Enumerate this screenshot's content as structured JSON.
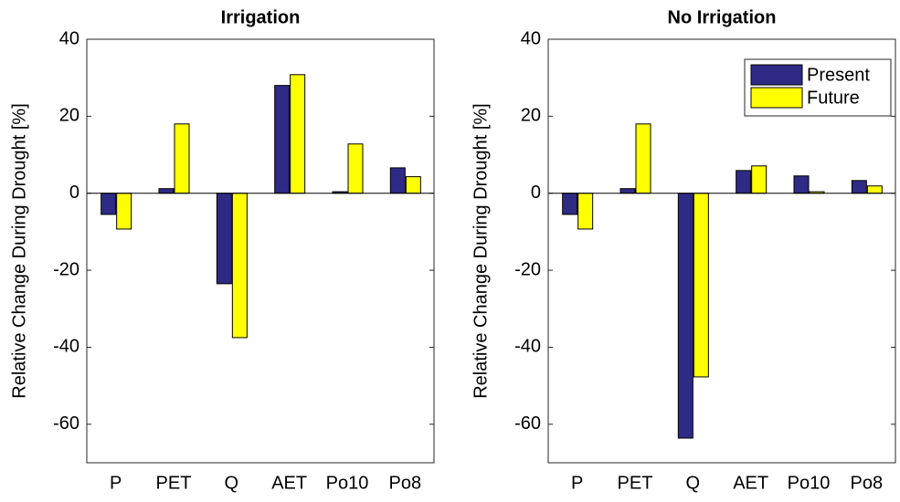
{
  "chart_data": [
    {
      "type": "bar",
      "title": "Irrigation",
      "ylabel": "Relative Change During Drought [%]",
      "categories": [
        "P",
        "PET",
        "Q",
        "AET",
        "Po10",
        "Po8"
      ],
      "series": [
        {
          "color": "#2e2a85",
          "values": [
            -5.5,
            1.2,
            -23.5,
            28,
            0.4,
            6.6
          ]
        },
        {
          "color": "#ffff00",
          "values": [
            -9.3,
            18,
            -37.5,
            30.8,
            12.8,
            4.3
          ]
        }
      ],
      "ylim": [
        -70,
        40
      ],
      "yticks": [
        -60,
        -40,
        -20,
        0,
        20,
        40
      ]
    },
    {
      "type": "bar",
      "title": "No Irrigation",
      "ylabel": "Relative Change During Drought [%]",
      "categories": [
        "P",
        "PET",
        "Q",
        "AET",
        "Po10",
        "Po8"
      ],
      "series": [
        {
          "name": "Present",
          "color": "#2e2a85",
          "values": [
            -5.5,
            1.2,
            -63.6,
            5.9,
            4.5,
            3.3
          ]
        },
        {
          "name": "Future",
          "color": "#ffff00",
          "values": [
            -9.3,
            18,
            -47.7,
            7.1,
            0.4,
            1.9
          ]
        }
      ],
      "ylim": [
        -70,
        40
      ],
      "yticks": [
        -60,
        -40,
        -20,
        0,
        20,
        40
      ],
      "legend": "upper right"
    }
  ]
}
